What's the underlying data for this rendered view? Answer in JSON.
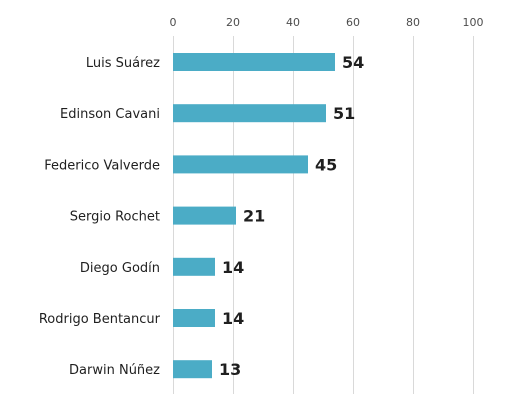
{
  "chart_data": {
    "type": "bar",
    "orientation": "horizontal",
    "categories": [
      "Luis Suárez",
      "Edinson Cavani",
      "Federico Valverde",
      "Sergio Rochet",
      "Diego Godín",
      "Rodrigo Bentancur",
      "Darwin Núñez"
    ],
    "values": [
      54,
      51,
      45,
      21,
      14,
      14,
      13
    ],
    "xlim": [
      0,
      100
    ],
    "x_ticks": [
      0,
      20,
      40,
      60,
      80,
      100
    ],
    "x_tick_labels": [
      "0",
      "20",
      "40",
      "60",
      "80",
      "100"
    ],
    "x_axis_position": "top",
    "grid": true,
    "data_labels": true,
    "bar_color": "#4bacc6"
  }
}
